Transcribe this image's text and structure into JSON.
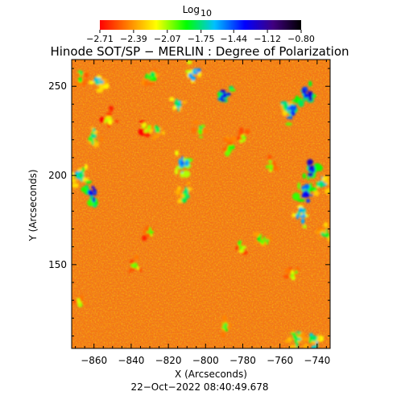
{
  "chart_data": {
    "type": "heatmap",
    "title": "Hinode SOT/SP − MERLIN : Degree of Polarization",
    "xlabel": "X (Arcseconds)",
    "ylabel": "Y (Arcseconds)",
    "xlim": [
      -872,
      -733
    ],
    "ylim": [
      103,
      265
    ],
    "x_ticks": [
      -860,
      -840,
      -820,
      -800,
      -780,
      -760,
      -740
    ],
    "x_tick_labels": [
      "−860",
      "−840",
      "−820",
      "−800",
      "−780",
      "−760",
      "−740"
    ],
    "y_ticks": [
      150,
      200,
      250
    ],
    "y_tick_labels": [
      "150",
      "200",
      "250"
    ],
    "colorbar": {
      "title": "Log",
      "title_subscript": "10",
      "min": -2.71,
      "max": -0.8,
      "ticks": [
        -2.71,
        -2.39,
        -2.07,
        -1.75,
        -1.44,
        -1.12,
        -0.8
      ],
      "tick_labels": [
        "−2.71",
        "−2.39",
        "−2.07",
        "−1.75",
        "−1.44",
        "−1.12",
        "−0.80"
      ],
      "colors": [
        "#ff0000",
        "#ff8000",
        "#ffff00",
        "#00ff00",
        "#00c0ff",
        "#0000ff",
        "#400080",
        "#000000"
      ]
    },
    "timestamp": "22−Oct−2022 08:40:49.678",
    "background_color": "#f07a1e",
    "features": [
      {
        "x": -866.5,
        "y": 200.0,
        "level": -1.6,
        "size": 6
      },
      {
        "x": -860.0,
        "y": 190.0,
        "level": -1.2,
        "size": 6
      },
      {
        "x": -867.0,
        "y": 256.0,
        "level": -1.8,
        "size": 4
      },
      {
        "x": -858.0,
        "y": 252.0,
        "level": -1.6,
        "size": 5
      },
      {
        "x": -860.0,
        "y": 222.0,
        "level": -1.7,
        "size": 5
      },
      {
        "x": -852.0,
        "y": 232.0,
        "level": -2.0,
        "size": 5
      },
      {
        "x": -832.0,
        "y": 225.0,
        "level": -2.0,
        "size": 5
      },
      {
        "x": -830.0,
        "y": 255.0,
        "level": -1.8,
        "size": 5
      },
      {
        "x": -826.0,
        "y": 225.0,
        "level": -1.7,
        "size": 4
      },
      {
        "x": -813.0,
        "y": 206.0,
        "level": -1.4,
        "size": 6
      },
      {
        "x": -815.0,
        "y": 240.0,
        "level": -1.6,
        "size": 4
      },
      {
        "x": -811.0,
        "y": 190.0,
        "level": -1.7,
        "size": 5
      },
      {
        "x": -806.0,
        "y": 258.0,
        "level": -1.5,
        "size": 5
      },
      {
        "x": -803.0,
        "y": 225.0,
        "level": -1.8,
        "size": 5
      },
      {
        "x": -790.0,
        "y": 245.0,
        "level": -1.2,
        "size": 6
      },
      {
        "x": -787.0,
        "y": 215.0,
        "level": -1.8,
        "size": 5
      },
      {
        "x": -780.0,
        "y": 222.0,
        "level": -1.9,
        "size": 4
      },
      {
        "x": -781.0,
        "y": 160.0,
        "level": -1.9,
        "size": 4
      },
      {
        "x": -769.0,
        "y": 163.0,
        "level": -1.8,
        "size": 5
      },
      {
        "x": -765.0,
        "y": 205.0,
        "level": -1.9,
        "size": 4
      },
      {
        "x": -757.0,
        "y": 238.0,
        "level": -1.6,
        "size": 5
      },
      {
        "x": -753.0,
        "y": 235.0,
        "level": -1.3,
        "size": 6
      },
      {
        "x": -746.0,
        "y": 245.0,
        "level": -1.2,
        "size": 6
      },
      {
        "x": -743.0,
        "y": 204.0,
        "level": -1.2,
        "size": 6
      },
      {
        "x": -746.0,
        "y": 190.0,
        "level": -1.3,
        "size": 6
      },
      {
        "x": -738.0,
        "y": 195.0,
        "level": -1.6,
        "size": 5
      },
      {
        "x": -748.0,
        "y": 177.0,
        "level": -1.5,
        "size": 5
      },
      {
        "x": -736.0,
        "y": 168.0,
        "level": -1.7,
        "size": 4
      },
      {
        "x": -753.0,
        "y": 145.0,
        "level": -1.9,
        "size": 4
      },
      {
        "x": -752.0,
        "y": 109.0,
        "level": -1.7,
        "size": 6
      },
      {
        "x": -742.0,
        "y": 107.0,
        "level": -1.6,
        "size": 5
      },
      {
        "x": -838.0,
        "y": 150.0,
        "level": -1.9,
        "size": 4
      },
      {
        "x": -830.0,
        "y": 168.0,
        "level": -1.9,
        "size": 4
      },
      {
        "x": -790.0,
        "y": 115.0,
        "level": -1.8,
        "size": 4
      },
      {
        "x": -868.0,
        "y": 130.0,
        "level": -1.9,
        "size": 4
      }
    ]
  }
}
